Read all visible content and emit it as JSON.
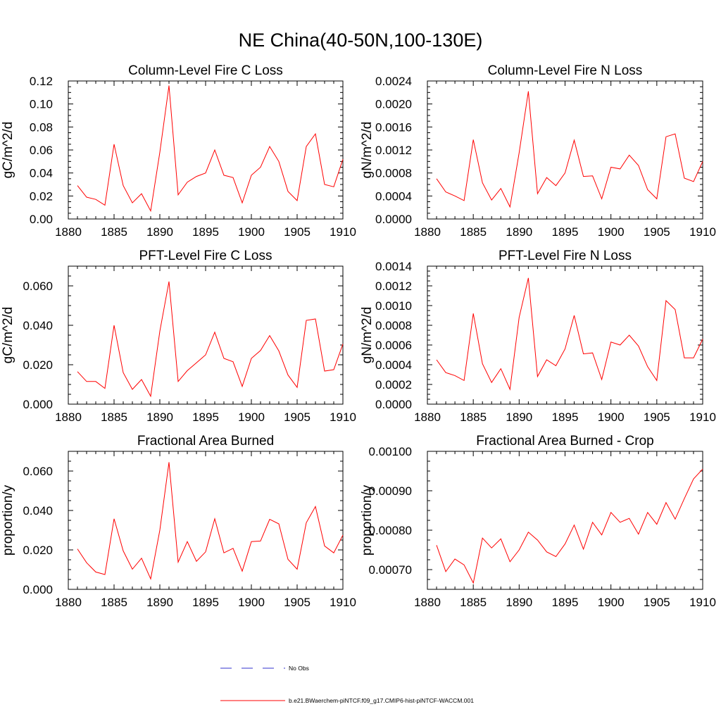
{
  "figure": {
    "title": "NE China(40-50N,100-130E)",
    "legend": [
      {
        "label": "No Obs",
        "color": "#3333cc",
        "style": "dashed"
      },
      {
        "label": "b.e21.BWaerchem-piNTCF.f09_g17.CMIP6-hist-piNTCF-WACCM.001",
        "color": "#ff0000",
        "style": "solid"
      }
    ]
  },
  "chart_data": [
    {
      "type": "line",
      "title": "Column-Level Fire C Loss",
      "ylabel": "gC/m^2/d",
      "xlim": [
        1880,
        1910
      ],
      "ylim": [
        0,
        0.12
      ],
      "xticks": [
        "1880",
        "1885",
        "1890",
        "1895",
        "1900",
        "1905",
        "1910"
      ],
      "yticks": [
        "0.00",
        "0.02",
        "0.04",
        "0.06",
        "0.08",
        "0.10",
        "0.12"
      ],
      "x": [
        1881,
        1882,
        1883,
        1884,
        1885,
        1886,
        1887,
        1888,
        1889,
        1890,
        1891,
        1892,
        1893,
        1894,
        1895,
        1896,
        1897,
        1898,
        1899,
        1900,
        1901,
        1902,
        1903,
        1904,
        1905,
        1906,
        1907,
        1908,
        1909,
        1910
      ],
      "series": [
        {
          "name": "b.e21.BWaerchem-piNTCF.f09_g17.CMIP6-hist-piNTCF-WACCM.001",
          "color": "#ff0000",
          "values": [
            0.029,
            0.019,
            0.017,
            0.012,
            0.065,
            0.029,
            0.014,
            0.022,
            0.007,
            0.058,
            0.116,
            0.021,
            0.032,
            0.037,
            0.04,
            0.06,
            0.038,
            0.036,
            0.014,
            0.038,
            0.045,
            0.063,
            0.05,
            0.024,
            0.016,
            0.063,
            0.074,
            0.03,
            0.028,
            0.052
          ]
        }
      ]
    },
    {
      "type": "line",
      "title": "Column-Level Fire N Loss",
      "ylabel": "gN/m^2/d",
      "xlim": [
        1880,
        1910
      ],
      "ylim": [
        0,
        0.0024
      ],
      "xticks": [
        "1880",
        "1885",
        "1890",
        "1895",
        "1900",
        "1905",
        "1910"
      ],
      "yticks": [
        "0.0000",
        "0.0004",
        "0.0008",
        "0.0012",
        "0.0016",
        "0.0020",
        "0.0024"
      ],
      "x": [
        1881,
        1882,
        1883,
        1884,
        1885,
        1886,
        1887,
        1888,
        1889,
        1890,
        1891,
        1892,
        1893,
        1894,
        1895,
        1896,
        1897,
        1898,
        1899,
        1900,
        1901,
        1902,
        1903,
        1904,
        1905,
        1906,
        1907,
        1908,
        1909,
        1910
      ],
      "series": [
        {
          "name": "b.e21.BWaerchem-piNTCF.f09_g17.CMIP6-hist-piNTCF-WACCM.001",
          "color": "#ff0000",
          "values": [
            0.0007,
            0.00047,
            0.0004,
            0.00032,
            0.00138,
            0.00063,
            0.00033,
            0.00053,
            0.00021,
            0.00115,
            0.00222,
            0.00044,
            0.00072,
            0.00058,
            0.0008,
            0.00137,
            0.00074,
            0.00075,
            0.00035,
            0.0009,
            0.00087,
            0.00111,
            0.00093,
            0.00051,
            0.00035,
            0.00143,
            0.00148,
            0.00071,
            0.00065,
            0.001
          ]
        }
      ]
    },
    {
      "type": "line",
      "title": "PFT-Level Fire C Loss",
      "ylabel": "gC/m^2/d",
      "xlim": [
        1880,
        1910
      ],
      "ylim": [
        0,
        0.07
      ],
      "xticks": [
        "1880",
        "1885",
        "1890",
        "1895",
        "1900",
        "1905",
        "1910"
      ],
      "yticks": [
        "0.000",
        "0.020",
        "0.040",
        "0.060"
      ],
      "ytick_values": [
        0,
        0.02,
        0.04,
        0.06
      ],
      "x": [
        1881,
        1882,
        1883,
        1884,
        1885,
        1886,
        1887,
        1888,
        1889,
        1890,
        1891,
        1892,
        1893,
        1894,
        1895,
        1896,
        1897,
        1898,
        1899,
        1900,
        1901,
        1902,
        1903,
        1904,
        1905,
        1906,
        1907,
        1908,
        1909,
        1910
      ],
      "series": [
        {
          "name": "b.e21.BWaerchem-piNTCF.f09_g17.CMIP6-hist-piNTCF-WACCM.001",
          "color": "#ff0000",
          "values": [
            0.0165,
            0.0115,
            0.0115,
            0.008,
            0.04,
            0.016,
            0.0075,
            0.0125,
            0.004,
            0.037,
            0.0622,
            0.0115,
            0.017,
            0.021,
            0.025,
            0.0365,
            0.0232,
            0.0215,
            0.009,
            0.0232,
            0.0272,
            0.0348,
            0.027,
            0.0148,
            0.0085,
            0.0425,
            0.0432,
            0.0168,
            0.0175,
            0.0305
          ]
        }
      ]
    },
    {
      "type": "line",
      "title": "PFT-Level Fire N Loss",
      "ylabel": "gN/m^2/d",
      "xlim": [
        1880,
        1910
      ],
      "ylim": [
        0,
        0.0014
      ],
      "xticks": [
        "1880",
        "1885",
        "1890",
        "1895",
        "1900",
        "1905",
        "1910"
      ],
      "yticks": [
        "0.0000",
        "0.0002",
        "0.0004",
        "0.0006",
        "0.0008",
        "0.0010",
        "0.0012",
        "0.0014"
      ],
      "x": [
        1881,
        1882,
        1883,
        1884,
        1885,
        1886,
        1887,
        1888,
        1889,
        1890,
        1891,
        1892,
        1893,
        1894,
        1895,
        1896,
        1897,
        1898,
        1899,
        1900,
        1901,
        1902,
        1903,
        1904,
        1905,
        1906,
        1907,
        1908,
        1909,
        1910
      ],
      "series": [
        {
          "name": "b.e21.BWaerchem-piNTCF.f09_g17.CMIP6-hist-piNTCF-WACCM.001",
          "color": "#ff0000",
          "values": [
            0.00045,
            0.00032,
            0.00029,
            0.00024,
            0.00092,
            0.00041,
            0.00022,
            0.00036,
            0.00015,
            0.00088,
            0.00128,
            0.00028,
            0.00045,
            0.00039,
            0.00056,
            0.0009,
            0.00051,
            0.00052,
            0.00025,
            0.00063,
            0.0006,
            0.0007,
            0.00059,
            0.00038,
            0.00024,
            0.00105,
            0.00096,
            0.00047,
            0.00047,
            0.00066
          ]
        }
      ]
    },
    {
      "type": "line",
      "title": "Fractional Area Burned",
      "ylabel": "proportion/y",
      "xlim": [
        1880,
        1910
      ],
      "ylim": [
        0,
        0.07
      ],
      "xticks": [
        "1880",
        "1885",
        "1890",
        "1895",
        "1900",
        "1905",
        "1910"
      ],
      "yticks": [
        "0.000",
        "0.020",
        "0.040",
        "0.060"
      ],
      "ytick_values": [
        0,
        0.02,
        0.04,
        0.06
      ],
      "x": [
        1881,
        1882,
        1883,
        1884,
        1885,
        1886,
        1887,
        1888,
        1889,
        1890,
        1891,
        1892,
        1893,
        1894,
        1895,
        1896,
        1897,
        1898,
        1899,
        1900,
        1901,
        1902,
        1903,
        1904,
        1905,
        1906,
        1907,
        1908,
        1909,
        1910
      ],
      "series": [
        {
          "name": "b.e21.BWaerchem-piNTCF.f09_g17.CMIP6-hist-piNTCF-WACCM.001",
          "color": "#ff0000",
          "values": [
            0.0205,
            0.0135,
            0.0088,
            0.0075,
            0.0358,
            0.0195,
            0.0102,
            0.0158,
            0.0053,
            0.03,
            0.0645,
            0.0138,
            0.0242,
            0.0142,
            0.019,
            0.0358,
            0.0185,
            0.0208,
            0.0092,
            0.0242,
            0.0245,
            0.0355,
            0.0332,
            0.0152,
            0.0102,
            0.0338,
            0.042,
            0.022,
            0.0185,
            0.0275
          ]
        }
      ]
    },
    {
      "type": "line",
      "title": "Fractional Area Burned - Crop",
      "ylabel": "proportion/y",
      "xlim": [
        1880,
        1910
      ],
      "ylim": [
        0.00065,
        0.001
      ],
      "xticks": [
        "1880",
        "1885",
        "1890",
        "1895",
        "1900",
        "1905",
        "1910"
      ],
      "yticks": [
        "0.00070",
        "0.00080",
        "0.00090",
        "0.00100"
      ],
      "ytick_values": [
        0.0007,
        0.0008,
        0.0009,
        0.001
      ],
      "x": [
        1881,
        1882,
        1883,
        1884,
        1885,
        1886,
        1887,
        1888,
        1889,
        1890,
        1891,
        1892,
        1893,
        1894,
        1895,
        1896,
        1897,
        1898,
        1899,
        1900,
        1901,
        1902,
        1903,
        1904,
        1905,
        1906,
        1907,
        1908,
        1909,
        1910
      ],
      "series": [
        {
          "name": "b.e21.BWaerchem-piNTCF.f09_g17.CMIP6-hist-piNTCF-WACCM.001",
          "color": "#ff0000",
          "values": [
            0.000762,
            0.000695,
            0.000727,
            0.000712,
            0.000666,
            0.00078,
            0.000755,
            0.000778,
            0.00072,
            0.00075,
            0.000795,
            0.000775,
            0.000745,
            0.000733,
            0.000765,
            0.000813,
            0.000752,
            0.00082,
            0.000788,
            0.000845,
            0.00082,
            0.00083,
            0.00079,
            0.000845,
            0.000815,
            0.00087,
            0.000828,
            0.00088,
            0.00093,
            0.000955
          ]
        }
      ]
    }
  ]
}
